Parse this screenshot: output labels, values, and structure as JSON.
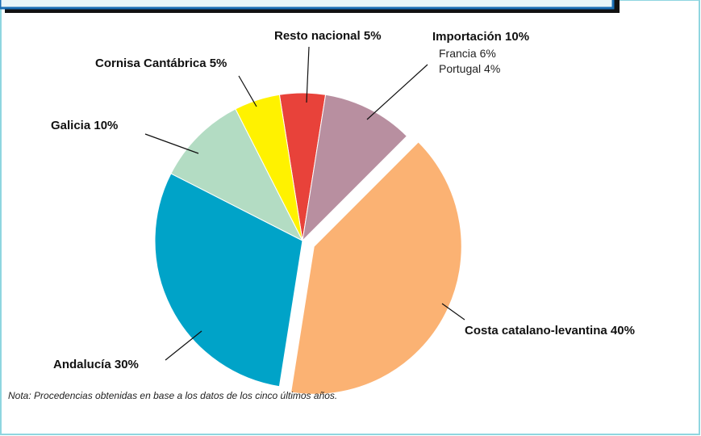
{
  "chart_data": {
    "type": "pie",
    "categories": [
      "Resto nacional",
      "Importación",
      "Costa catalano-levantina",
      "Andalucía",
      "Galicia",
      "Cornisa Cantábrica"
    ],
    "values": [
      5,
      10,
      40,
      30,
      10,
      5
    ],
    "value_labels": [
      "5%",
      "10%",
      "40%",
      "30%",
      "10%",
      "5%"
    ],
    "colors": [
      "#e8423a",
      "#b88fa0",
      "#fbb273",
      "#00a3c8",
      "#b3dcc3",
      "#fff200"
    ],
    "exploded": "Costa catalano-levantina",
    "breakdown": {
      "of": "Importación",
      "categories": [
        "Francia",
        "Portugal"
      ],
      "values": [
        6,
        4
      ],
      "value_labels": [
        "6%",
        "4%"
      ]
    },
    "note": "Nota: Procedencias obtenidas en base a los datos de los cinco últimos años."
  }
}
